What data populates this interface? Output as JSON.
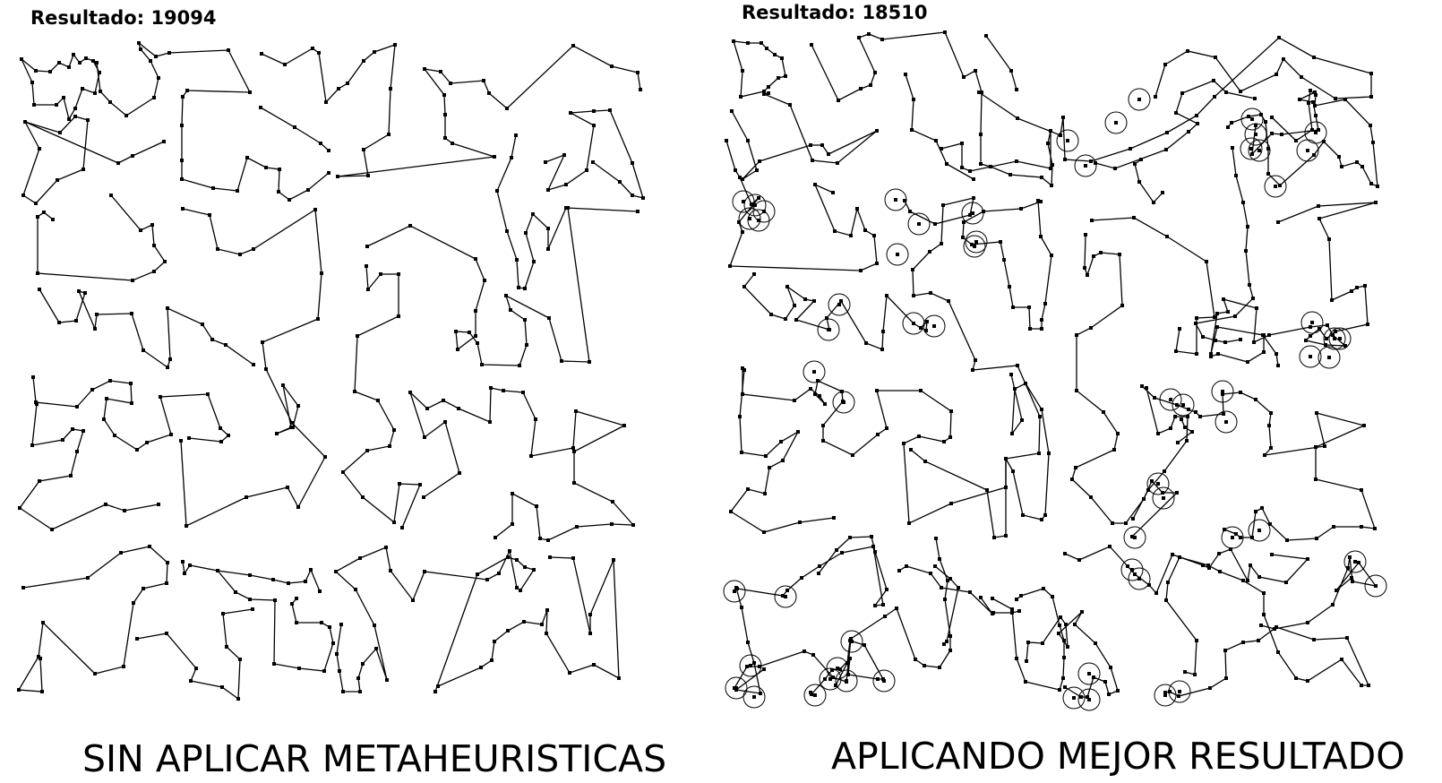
{
  "left": {
    "result_label": "Resultado: 19094",
    "caption": "SIN APLICAR METAHEURISTICAS"
  },
  "right": {
    "result_label": "Resultado: 18510",
    "caption": "APLICANDO MEJOR RESULTADO"
  },
  "colors": {
    "line": "#000000",
    "node": "#000000",
    "background": "#ffffff"
  }
}
